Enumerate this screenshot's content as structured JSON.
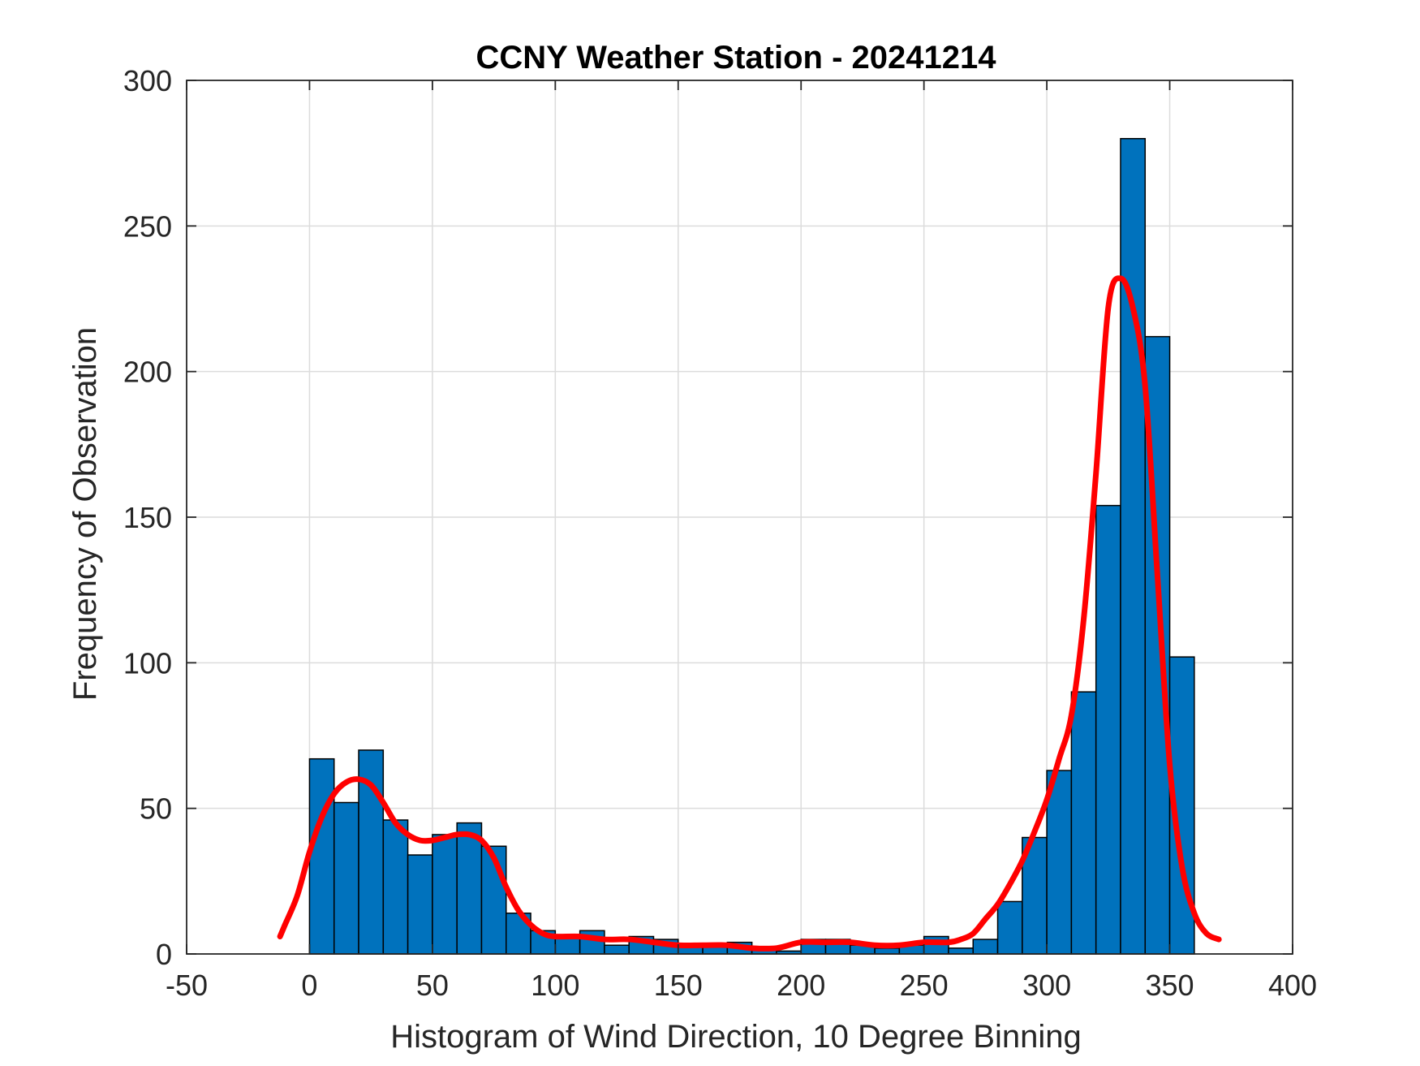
{
  "chart_data": {
    "type": "bar",
    "title": "CCNY Weather Station - 20241214",
    "xlabel": "Histogram of Wind Direction, 10 Degree Binning",
    "ylabel": "Frequency of Observation",
    "xlim": [
      -50,
      400
    ],
    "ylim": [
      0,
      300
    ],
    "xticks": [
      -50,
      0,
      50,
      100,
      150,
      200,
      250,
      300,
      350,
      400
    ],
    "yticks": [
      0,
      50,
      100,
      150,
      200,
      250,
      300
    ],
    "grid": true,
    "bins": {
      "edges": [
        0,
        10,
        20,
        30,
        40,
        50,
        60,
        70,
        80,
        90,
        100,
        110,
        120,
        130,
        140,
        150,
        160,
        170,
        180,
        190,
        200,
        210,
        220,
        230,
        240,
        250,
        260,
        270,
        280,
        290,
        300,
        310,
        320,
        330,
        340,
        350,
        360
      ],
      "counts": [
        67,
        52,
        70,
        46,
        34,
        41,
        45,
        37,
        14,
        8,
        6,
        8,
        3,
        6,
        5,
        3,
        3,
        4,
        2,
        1,
        5,
        5,
        3,
        2,
        3,
        6,
        2,
        5,
        18,
        40,
        63,
        90,
        154,
        280,
        212,
        102
      ]
    },
    "density_curve": {
      "x": [
        -12,
        -10,
        -5,
        0,
        5,
        10,
        15,
        20,
        25,
        30,
        35,
        40,
        45,
        50,
        55,
        60,
        65,
        70,
        75,
        80,
        85,
        90,
        95,
        100,
        110,
        120,
        130,
        140,
        150,
        160,
        170,
        180,
        190,
        200,
        210,
        220,
        230,
        240,
        250,
        260,
        265,
        270,
        275,
        280,
        285,
        290,
        295,
        300,
        305,
        310,
        315,
        320,
        325,
        330,
        335,
        340,
        345,
        350,
        355,
        360,
        365,
        370
      ],
      "y": [
        6,
        10,
        20,
        35,
        47,
        55,
        59,
        60,
        58,
        52,
        45,
        41,
        39,
        39,
        40,
        41,
        41,
        39,
        33,
        23,
        15,
        10,
        7,
        6,
        6,
        5,
        5,
        4,
        3,
        3,
        3,
        2,
        2,
        4,
        4,
        4,
        3,
        3,
        4,
        4,
        5,
        7,
        12,
        17,
        24,
        32,
        42,
        53,
        67,
        82,
        115,
        165,
        222,
        232,
        222,
        195,
        130,
        65,
        30,
        14,
        7,
        5
      ]
    },
    "colors": {
      "bar_fill": "#0072BD",
      "bar_edge": "#000000",
      "curve": "#FF0000",
      "grid": "#dcdcdc",
      "axes": "#262626"
    }
  }
}
